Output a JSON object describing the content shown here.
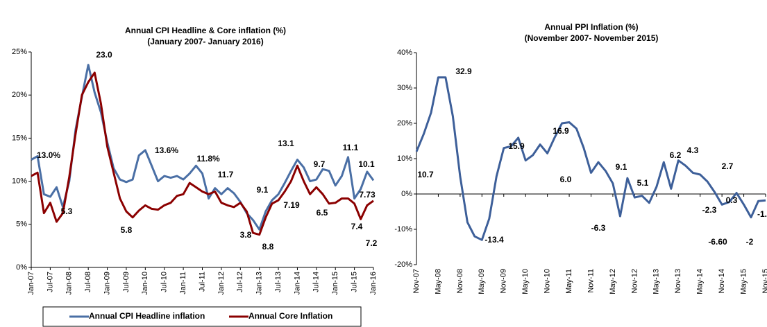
{
  "chart_data": [
    {
      "type": "line",
      "title": "Annual CPI Headline & Core inflation (%)",
      "subtitle": "(January 2007- January 2016)",
      "categories": [
        "Jan-07",
        null,
        null,
        "Jul-07",
        null,
        null,
        "Jan-08",
        null,
        null,
        "Jul-08",
        null,
        null,
        "Jan-09",
        null,
        null,
        "Jul-09",
        null,
        null,
        "Jan-10",
        null,
        null,
        "Jul-10",
        null,
        null,
        "Jan-11",
        null,
        null,
        "Jul-11",
        null,
        null,
        "Jan-12",
        null,
        null,
        "Jul-12",
        null,
        null,
        "Jan-13",
        null,
        null,
        "Jul-13",
        null,
        null,
        "Jan-14",
        null,
        null,
        "Jul-14",
        null,
        null,
        "Jan-15",
        null,
        null,
        "Jul-15",
        null,
        null,
        "Jan-16"
      ],
      "series": [
        {
          "name": "Annual CPI Headline inflation",
          "color": "#4a6fa5",
          "values": [
            12.5,
            12.9,
            8.5,
            8.2,
            9.3,
            7.0,
            10.0,
            16.0,
            19.8,
            23.5,
            20.3,
            18.0,
            14.5,
            11.5,
            10.2,
            9.9,
            10.2,
            13.0,
            13.6,
            11.8,
            10.0,
            10.6,
            10.4,
            10.6,
            10.2,
            10.9,
            11.8,
            10.9,
            8.0,
            9.2,
            8.5,
            9.2,
            8.6,
            7.6,
            6.3,
            5.5,
            4.4,
            6.5,
            7.8,
            8.5,
            9.8,
            11.2,
            12.5,
            11.6,
            10.0,
            10.2,
            11.4,
            11.2,
            9.5,
            10.6,
            12.8,
            8.0,
            9.1,
            11.1,
            10.1
          ]
        },
        {
          "name": "Annual Core Inflation",
          "color": "#8b0000",
          "values": [
            10.6,
            11.0,
            6.3,
            7.5,
            5.3,
            6.3,
            10.5,
            15.5,
            20.0,
            21.5,
            22.6,
            19.0,
            14.0,
            11.0,
            8.0,
            6.5,
            5.8,
            6.6,
            7.2,
            6.8,
            6.7,
            7.2,
            7.5,
            8.3,
            8.5,
            9.8,
            9.3,
            8.8,
            8.5,
            8.8,
            7.5,
            7.2,
            7.0,
            7.5,
            6.5,
            4.0,
            3.8,
            5.8,
            7.4,
            7.8,
            8.8,
            10.0,
            11.8,
            10.0,
            8.5,
            9.3,
            8.5,
            7.4,
            7.5,
            8.0,
            8.0,
            7.4,
            5.6,
            7.2,
            7.73
          ]
        }
      ],
      "ylim": [
        0,
        25
      ],
      "yticks": [
        {
          "value": 0,
          "label": "0%"
        },
        {
          "value": 5,
          "label": "5%"
        },
        {
          "value": 10,
          "label": "10%"
        },
        {
          "value": 15,
          "label": "15%"
        },
        {
          "value": 20,
          "label": "20%"
        },
        {
          "value": 25,
          "label": "25%"
        }
      ],
      "grid": false,
      "legend": "bottom",
      "annotations": [
        {
          "text": "13.0%",
          "color": "#4a6fa5"
        },
        {
          "text": "23.0",
          "color": "#8b0000"
        },
        {
          "text": "13.6%",
          "color": "#4a6fa5"
        },
        {
          "text": "11.8%",
          "color": "#4a6fa5"
        },
        {
          "text": "11.7",
          "color": "#8b0000"
        },
        {
          "text": "9.1",
          "color": "#8b0000"
        },
        {
          "text": "13.1",
          "color": "#4a6fa5"
        },
        {
          "text": "9.7",
          "color": "#4a6fa5"
        },
        {
          "text": "11.1",
          "color": "#4a6fa5"
        },
        {
          "text": "10.1",
          "color": "#4a6fa5"
        },
        {
          "text": "5.3",
          "color": "#8b0000"
        },
        {
          "text": "5.8",
          "color": "#8b0000"
        },
        {
          "text": "3.8",
          "color": "#8b0000"
        },
        {
          "text": "8.8",
          "color": "#8b0000"
        },
        {
          "text": "7.19",
          "color": "#8b0000"
        },
        {
          "text": "6.5",
          "color": "#8b0000"
        },
        {
          "text": "7.4",
          "color": "#8b0000"
        },
        {
          "text": "7.2",
          "color": "#8b0000"
        },
        {
          "text": "7.73",
          "color": "#8b0000"
        }
      ]
    },
    {
      "type": "line",
      "title": "Annual PPI Inflation (%)",
      "subtitle": "(November 2007- November 2015)",
      "categories": [
        "Nov-07",
        null,
        null,
        "May-08",
        null,
        null,
        "Nov-08",
        null,
        null,
        "May-09",
        null,
        null,
        "Nov-09",
        null,
        null,
        "May-10",
        null,
        null,
        "Nov-10",
        null,
        null,
        "May-11",
        null,
        null,
        "Nov-11",
        null,
        null,
        "May-12",
        null,
        null,
        "Nov-12",
        null,
        null,
        "May-13",
        null,
        null,
        "Nov-13",
        null,
        null,
        "May-14",
        null,
        null,
        "Nov-14",
        null,
        null,
        "May-15",
        null,
        null,
        "Nov-15"
      ],
      "series": [
        {
          "color": "#3d5f99",
          "values": [
            12.0,
            17,
            23,
            33,
            33,
            22,
            5,
            -8,
            -12,
            -13,
            -7,
            5,
            13,
            13.5,
            15.9,
            9.5,
            11,
            14,
            11.5,
            16,
            20,
            20.3,
            18.5,
            13,
            6,
            9,
            6.5,
            3,
            -6.3,
            4.5,
            -1,
            -0.5,
            -2.5,
            2,
            9,
            1.5,
            9.5,
            8,
            6,
            5.5,
            3.5,
            0.5,
            -3,
            -2.3,
            0.3,
            -3,
            -6.6,
            -2,
            -1.8
          ]
        }
      ],
      "ylim": [
        -20,
        40
      ],
      "yticks": [
        {
          "value": -20,
          "label": "-20%"
        },
        {
          "value": -10,
          "label": "-10%"
        },
        {
          "value": 0,
          "label": "0%"
        },
        {
          "value": 10,
          "label": "10%"
        },
        {
          "value": 20,
          "label": "20%"
        },
        {
          "value": 30,
          "label": "30%"
        },
        {
          "value": 40,
          "label": "40%"
        }
      ],
      "grid": false,
      "annotations": [
        {
          "text": "32.9",
          "color": "#2f4f8a"
        },
        {
          "text": "10.7",
          "color": "#2f4f8a"
        },
        {
          "text": "-13.4",
          "color": "#2f4f8a"
        },
        {
          "text": "15.9",
          "color": "#2f4f8a"
        },
        {
          "text": "16.9",
          "color": "#2f4f8a"
        },
        {
          "text": "6.0",
          "color": "#2f4f8a"
        },
        {
          "text": "-6.3",
          "color": "#2f4f8a"
        },
        {
          "text": "9.1",
          "color": "#2f4f8a"
        },
        {
          "text": "5.1",
          "color": "#2f4f8a"
        },
        {
          "text": "6.2",
          "color": "#2f4f8a"
        },
        {
          "text": "4.3",
          "color": "#2f4f8a"
        },
        {
          "text": "2.7",
          "color": "#2f4f8a"
        },
        {
          "text": "0.3",
          "color": "#2f4f8a"
        },
        {
          "text": "-2.3",
          "color": "#2f4f8a"
        },
        {
          "text": "-6.60",
          "color": "#2f4f8a"
        },
        {
          "text": "-2",
          "color": "#2f4f8a"
        },
        {
          "text": "-1.",
          "color": "#2f4f8a"
        }
      ]
    }
  ]
}
